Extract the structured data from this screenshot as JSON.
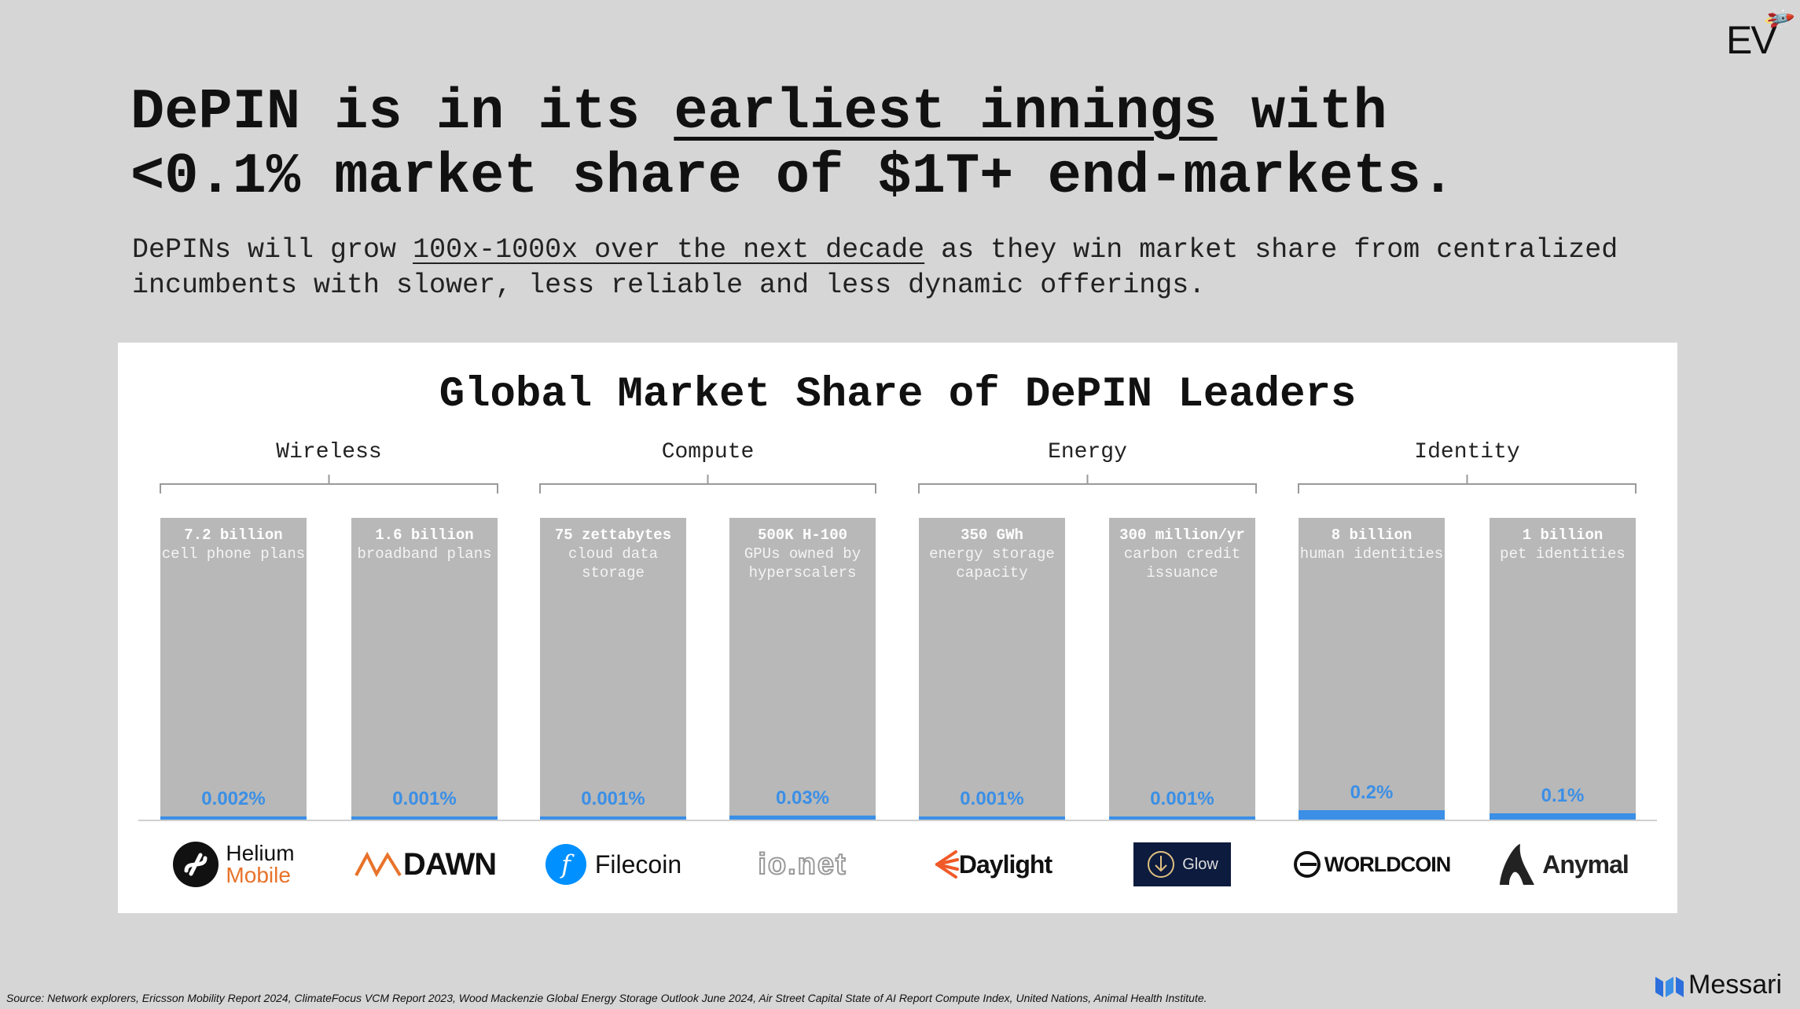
{
  "brand": {
    "logo_text": "EV",
    "rocket_icon": "rocket-icon",
    "messari": "Messari"
  },
  "headline": {
    "line1_pre": "DePIN is in its ",
    "line1_underlined": "earliest innings",
    "line1_post": " with",
    "line2": "<0.1% market share of $1T+ end-markets."
  },
  "subhead": {
    "pre": "DePINs will grow ",
    "underlined": "100x-1000x over the next decade",
    "post": " as they win market share from centralized incumbents with slower, less reliable and less dynamic offerings."
  },
  "chart_data": {
    "type": "bar",
    "title": "Global Market Share of DePIN Leaders",
    "groups": [
      "Wireless",
      "Compute",
      "Energy",
      "Identity"
    ],
    "categories": [
      "Helium Mobile",
      "DAWN",
      "Filecoin",
      "io.net",
      "Daylight",
      "Glow",
      "Worldcoin",
      "Anymal"
    ],
    "market_size": [
      {
        "value": "7.2 billion",
        "desc": "cell phone plans"
      },
      {
        "value": "1.6 billion",
        "desc": "broadband plans"
      },
      {
        "value": "75 zettabytes",
        "desc": "cloud data storage"
      },
      {
        "value": "500K H-100",
        "desc": "GPUs owned by hyperscalers"
      },
      {
        "value": "350 GWh",
        "desc": "energy storage capacity"
      },
      {
        "value": "300 million/yr",
        "desc": "carbon credit issuance"
      },
      {
        "value": "8 billion",
        "desc": "human identities"
      },
      {
        "value": "1 billion",
        "desc": "pet identities"
      }
    ],
    "share_labels": [
      "0.002%",
      "0.001%",
      "0.001%",
      "0.03%",
      "0.001%",
      "0.001%",
      "0.2%",
      "0.1%"
    ],
    "values": [
      0.002,
      0.001,
      0.001,
      0.03,
      0.001,
      0.001,
      0.2,
      0.1
    ],
    "colors": {
      "market": "#b8b8b8",
      "share": "#3b8fe6"
    }
  },
  "logos": [
    {
      "name": "Helium",
      "sub": "Mobile"
    },
    {
      "name": "DAWN"
    },
    {
      "name": "Filecoin"
    },
    {
      "name": "io.net"
    },
    {
      "name": "Daylight"
    },
    {
      "name": "Glow"
    },
    {
      "name": "WORLDCOIN"
    },
    {
      "name": "Anymal"
    }
  ],
  "footer": "Source: Network explorers, Ericsson Mobility Report 2024, ClimateFocus VCM Report 2023, Wood Mackenzie Global Energy Storage Outlook June 2024, Air Street Capital State of AI Report Compute Index, United Nations, Animal Health Institute."
}
